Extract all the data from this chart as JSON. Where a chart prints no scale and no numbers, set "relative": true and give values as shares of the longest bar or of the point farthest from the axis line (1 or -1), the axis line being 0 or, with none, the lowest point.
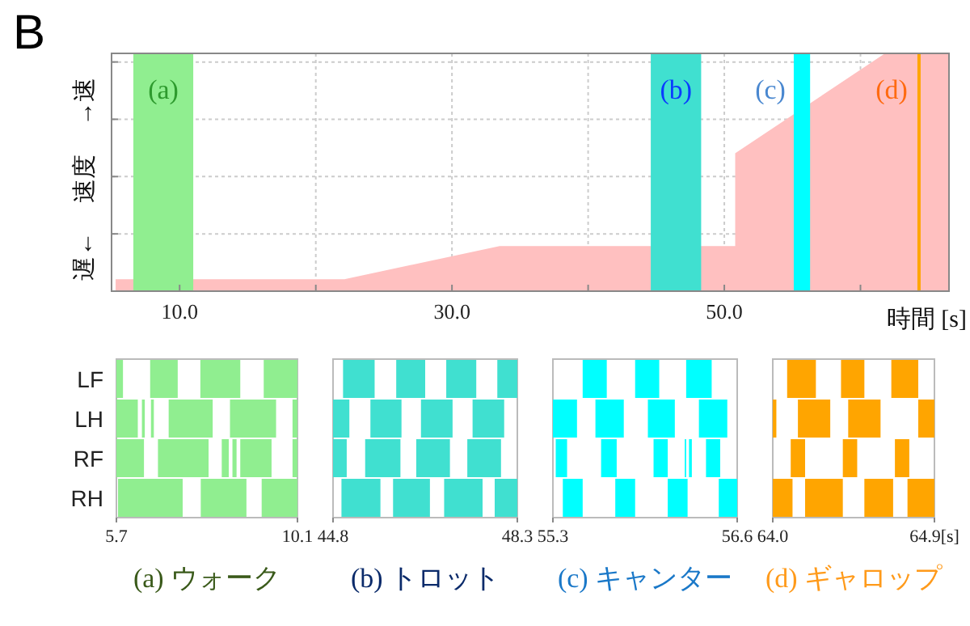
{
  "chart_data": [
    {
      "type": "area",
      "title": "B",
      "xlabel": "時間 [s]",
      "ylabel": "遅← 速度 →速",
      "relative": true,
      "color": "#ffc0c0",
      "grid": true,
      "x": [
        5.3,
        22.1,
        33.5,
        50.8,
        50.8,
        61.8,
        66.5
      ],
      "values": [
        0.05,
        0.05,
        0.19,
        0.19,
        0.58,
        1,
        1
      ],
      "xlim": [
        5,
        66.5
      ],
      "xticks": [
        {
          "value": 10,
          "label": "10.0"
        },
        {
          "value": 20,
          "label": null
        },
        {
          "value": 30,
          "label": "30.0"
        },
        {
          "value": 40,
          "label": null
        },
        {
          "value": 50,
          "label": "50.0"
        },
        {
          "value": 60,
          "label": null
        }
      ],
      "bands": [
        {
          "axis": "x",
          "from": 6.6,
          "to": 11.0,
          "label": "(a)",
          "color": "#90ee90"
        },
        {
          "axis": "x",
          "from": 44.6,
          "to": 48.3,
          "label": "(b)",
          "color": "#40e0d0"
        },
        {
          "axis": "x",
          "from": 55.1,
          "to": 56.3,
          "label": "(c)",
          "color": "#00ffff"
        }
      ],
      "ref_lines": [
        {
          "axis": "x",
          "value": 64.3,
          "label": "(d)",
          "color": "#ffa500"
        }
      ]
    },
    {
      "type": "bar",
      "orientation": "horizontal",
      "xlabel": "(a) ウォーク",
      "categories": [
        "LF",
        "LH",
        "RF",
        "RH"
      ],
      "xlim": [
        5.7,
        10.1
      ],
      "xticks": [
        5.7,
        10.1
      ],
      "series": [
        {
          "color": "#90ee90",
          "base": [
            5.7,
            5.7,
            5.7,
            5.74
          ],
          "values": [
            0.16,
            0.52,
            0.67,
            1.57
          ]
        },
        {
          "color": "#90ee90",
          "base": [
            6.52,
            6.32,
            6.71,
            7.75
          ],
          "values": [
            0.67,
            0.07,
            1.23,
            1.11
          ]
        },
        {
          "color": "#90ee90",
          "base": [
            7.74,
            6.54,
            8.26,
            9.23
          ],
          "values": [
            0.97,
            0.07,
            0.17,
            0.87
          ]
        },
        {
          "color": "#90ee90",
          "base": [
            9.28,
            6.97,
            8.52,
            null
          ],
          "values": [
            0.82,
            1.07,
            0.1,
            null
          ]
        },
        {
          "color": "#90ee90",
          "base": [
            null,
            8.46,
            8.71,
            null
          ],
          "values": [
            null,
            1.12,
            0.76,
            null
          ]
        },
        {
          "color": "#90ee90",
          "base": [
            null,
            9.98,
            9.98,
            null
          ],
          "values": [
            null,
            0.12,
            0.12,
            null
          ]
        }
      ]
    },
    {
      "type": "bar",
      "orientation": "horizontal",
      "xlabel": "(b) トロット",
      "categories": [
        null,
        null,
        null,
        null
      ],
      "tick_labels": "x",
      "xlim": [
        44.8,
        48.3
      ],
      "xticks": [
        44.8,
        48.3
      ],
      "series": [
        {
          "color": "#40e0d0",
          "base": [
            44.99,
            44.8,
            44.8,
            44.96
          ],
          "values": [
            0.6,
            0.31,
            0.26,
            0.74
          ]
        },
        {
          "color": "#40e0d0",
          "base": [
            46.0,
            45.51,
            45.41,
            45.94
          ],
          "values": [
            0.55,
            0.59,
            0.67,
            0.7
          ]
        },
        {
          "color": "#40e0d0",
          "base": [
            46.95,
            46.47,
            46.38,
            46.91
          ],
          "values": [
            0.57,
            0.6,
            0.64,
            0.73
          ]
        },
        {
          "color": "#40e0d0",
          "base": [
            47.92,
            47.45,
            47.35,
            47.87
          ],
          "values": [
            0.38,
            0.6,
            0.64,
            0.43
          ]
        }
      ]
    },
    {
      "type": "bar",
      "orientation": "horizontal",
      "xlabel": "(c) キャンター",
      "categories": [
        null,
        null,
        null,
        null
      ],
      "tick_labels": "x",
      "xlim": [
        55.3,
        56.6
      ],
      "xticks": [
        55.3,
        56.6
      ],
      "series": [
        {
          "color": "#00ffff",
          "base": [
            55.51,
            55.3,
            55.32,
            55.37
          ],
          "values": [
            0.17,
            0.17,
            0.08,
            0.14
          ]
        },
        {
          "color": "#00ffff",
          "base": [
            55.88,
            55.6,
            55.64,
            55.74
          ],
          "values": [
            0.17,
            0.2,
            0.11,
            0.14
          ]
        },
        {
          "color": "#00ffff",
          "base": [
            56.24,
            55.97,
            56.01,
            56.11
          ],
          "values": [
            0.18,
            0.19,
            0.1,
            0.14
          ]
        },
        {
          "color": "#00ffff",
          "base": [
            null,
            56.33,
            56.23,
            56.47
          ],
          "values": [
            null,
            0.2,
            0.01,
            0.13
          ]
        },
        {
          "color": "#00ffff",
          "base": [
            null,
            null,
            56.26,
            null
          ],
          "values": [
            null,
            null,
            0.02,
            null
          ]
        },
        {
          "color": "#00ffff",
          "base": [
            null,
            null,
            56.38,
            null
          ],
          "values": [
            null,
            null,
            0.1,
            null
          ]
        }
      ]
    },
    {
      "type": "bar",
      "orientation": "horizontal",
      "xlabel": "(d) ギャロップ",
      "categories": [
        null,
        null,
        null,
        null
      ],
      "tick_labels": "x",
      "xlim": [
        64.0,
        64.9
      ],
      "xticks": [
        {
          "value": 64.0,
          "label": "64.0"
        },
        {
          "value": 64.9,
          "label": "64.9[s]"
        }
      ],
      "series": [
        {
          "color": "#ffa500",
          "base": [
            64.08,
            64.0,
            64.1,
            64.0
          ],
          "values": [
            0.16,
            0.02,
            0.08,
            0.11
          ]
        },
        {
          "color": "#ffa500",
          "base": [
            64.38,
            64.14,
            64.39,
            64.18
          ],
          "values": [
            0.13,
            0.18,
            0.08,
            0.21
          ]
        },
        {
          "color": "#ffa500",
          "base": [
            64.66,
            64.42,
            64.68,
            64.51
          ],
          "values": [
            0.15,
            0.18,
            0.08,
            0.16
          ]
        },
        {
          "color": "#ffa500",
          "base": [
            null,
            64.81,
            null,
            64.75
          ],
          "values": [
            null,
            0.09,
            null,
            0.15
          ]
        }
      ]
    }
  ]
}
